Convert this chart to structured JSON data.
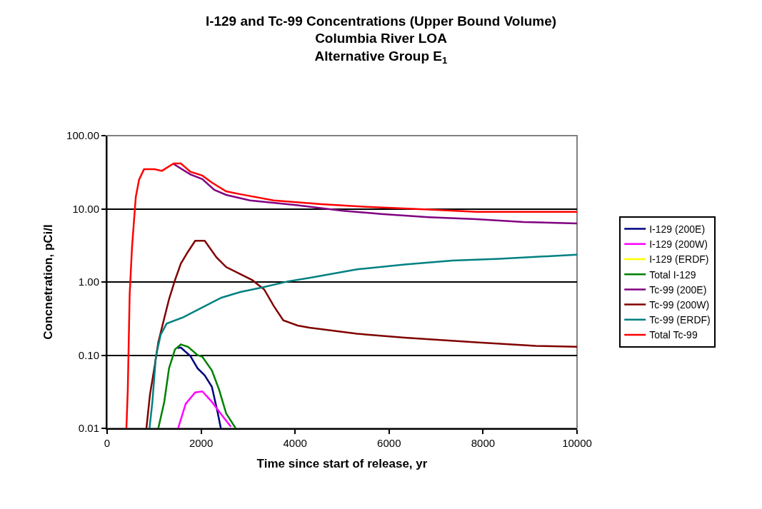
{
  "chart_data": {
    "type": "line",
    "title": "I-129 and Tc-99 Concentrations (Upper Bound Volume)\nColumbia River LOA\nAlternative Group E$_{1}$",
    "xlabel": "Time since start of release, yr",
    "ylabel": "Concnetration, pCi/l",
    "log": "y",
    "xlim": [
      0,
      10000
    ],
    "xticks": [
      0,
      2000,
      4000,
      6000,
      8000,
      10000
    ],
    "ylim": [
      0.01,
      100
    ],
    "yticks": [
      {
        "value": 0.01,
        "label": "0.01"
      },
      {
        "value": 0.1,
        "label": "0.10"
      },
      {
        "value": 1,
        "label": "1.00"
      },
      {
        "value": 10,
        "label": "10.00"
      },
      {
        "value": 100,
        "label": "100.00"
      }
    ],
    "grid": "y",
    "legend": "right",
    "marker": "none",
    "line_style": "solid",
    "series": [
      {
        "name": "I-129 (200E)",
        "color": "#000080",
        "x": [
          1500,
          1570,
          1773,
          1925,
          2077,
          2229,
          2356,
          2420
        ],
        "values": [
          0.125,
          0.127,
          0.097,
          0.066,
          0.053,
          0.037,
          0.016,
          0.01
        ]
      },
      {
        "name": "I-129 (200W)",
        "color": "#ff00ff",
        "x": [
          1510,
          1672,
          1874,
          2026,
          2229,
          2432,
          2634
        ],
        "values": [
          0.01,
          0.0216,
          0.031,
          0.032,
          0.023,
          0.0154,
          0.0105
        ]
      },
      {
        "name": "I-129 (ERDF)",
        "color": "#ffff00"
      },
      {
        "name": "Total I-129",
        "color": "#008000",
        "x": [
          1089,
          1216,
          1317,
          1444,
          1570,
          1722,
          1925,
          2026,
          2229,
          2381,
          2533,
          2736
        ],
        "values": [
          0.01,
          0.023,
          0.066,
          0.12,
          0.14,
          0.13,
          0.1,
          0.095,
          0.062,
          0.034,
          0.016,
          0.01
        ]
      },
      {
        "name": "Tc-99 (200E)",
        "color": "#800080",
        "x": [
          1415,
          1773,
          2025,
          2280,
          2533,
          3040,
          4053,
          5015,
          5830,
          6840,
          7860,
          8860,
          10000
        ],
        "values": [
          41,
          29.5,
          25.5,
          18.2,
          15.5,
          13.0,
          11.2,
          9.4,
          8.5,
          7.7,
          7.2,
          6.6,
          6.3
        ]
      },
      {
        "name": "Tc-99 (200W)",
        "color": "#800000",
        "x": [
          836,
          912,
          1013,
          1089,
          1216,
          1317,
          1444,
          1570,
          1722,
          1874,
          2077,
          2330,
          2533,
          2786,
          3090,
          3343,
          3546,
          3749,
          4053,
          4306,
          5320,
          6333,
          7852,
          9119,
          10000
        ],
        "values": [
          0.01,
          0.029,
          0.072,
          0.15,
          0.32,
          0.58,
          1.06,
          1.79,
          2.6,
          3.66,
          3.66,
          2.16,
          1.6,
          1.33,
          1.06,
          0.79,
          0.47,
          0.3,
          0.254,
          0.238,
          0.196,
          0.173,
          0.15,
          0.134,
          0.13
        ]
      },
      {
        "name": "Tc-99 (ERDF)",
        "color": "#008080",
        "x": [
          902,
          963,
          1038,
          1140,
          1266,
          1621,
          2026,
          2432,
          2837,
          3293,
          3850,
          4306,
          5320,
          6333,
          7345,
          8359,
          9372,
          10000
        ],
        "values": [
          0.01,
          0.023,
          0.097,
          0.19,
          0.27,
          0.33,
          0.45,
          0.61,
          0.73,
          0.84,
          1.02,
          1.14,
          1.49,
          1.73,
          1.96,
          2.08,
          2.25,
          2.36
        ]
      },
      {
        "name": "Total Tc-99",
        "color": "#ff0000",
        "x": [
          410,
          440,
          480,
          530,
          610,
          680,
          785,
          1010,
          1165,
          1415,
          1570,
          1773,
          2025,
          2230,
          2533,
          2820,
          3545,
          4560,
          5320,
          6840,
          7860,
          10000
        ],
        "values": [
          0.01,
          0.034,
          0.68,
          3.0,
          14.5,
          25,
          34.7,
          34.7,
          33,
          41.7,
          41.7,
          32,
          28.5,
          22.8,
          17.3,
          15.9,
          13.0,
          11.6,
          10.8,
          9.8,
          9.1,
          9.1
        ]
      }
    ]
  }
}
